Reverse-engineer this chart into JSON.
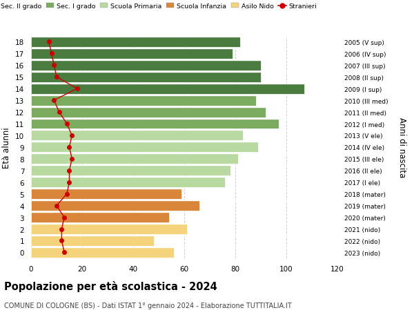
{
  "ages": [
    18,
    17,
    16,
    15,
    14,
    13,
    12,
    11,
    10,
    9,
    8,
    7,
    6,
    5,
    4,
    3,
    2,
    1,
    0
  ],
  "years": [
    "2005 (V sup)",
    "2006 (IV sup)",
    "2007 (III sup)",
    "2008 (II sup)",
    "2009 (I sup)",
    "2010 (III med)",
    "2011 (II med)",
    "2012 (I med)",
    "2013 (V ele)",
    "2014 (IV ele)",
    "2015 (III ele)",
    "2016 (II ele)",
    "2017 (I ele)",
    "2018 (mater)",
    "2019 (mater)",
    "2020 (mater)",
    "2021 (nido)",
    "2022 (nido)",
    "2023 (nido)"
  ],
  "values": [
    82,
    79,
    90,
    90,
    107,
    88,
    92,
    97,
    83,
    89,
    81,
    78,
    76,
    59,
    66,
    54,
    61,
    48,
    56
  ],
  "stranieri": [
    7,
    8,
    9,
    10,
    18,
    9,
    11,
    14,
    16,
    15,
    16,
    15,
    15,
    14,
    10,
    13,
    12,
    12,
    13
  ],
  "bar_colors": [
    "#4a7c3f",
    "#4a7c3f",
    "#4a7c3f",
    "#4a7c3f",
    "#4a7c3f",
    "#7bab5e",
    "#7bab5e",
    "#7bab5e",
    "#b8d9a0",
    "#b8d9a0",
    "#b8d9a0",
    "#b8d9a0",
    "#b8d9a0",
    "#d9863a",
    "#d9863a",
    "#d9863a",
    "#f5d37a",
    "#f5d37a",
    "#f5d37a"
  ],
  "legend_labels": [
    "Sec. II grado",
    "Sec. I grado",
    "Scuola Primaria",
    "Scuola Infanzia",
    "Asilo Nido",
    "Stranieri"
  ],
  "legend_colors": [
    "#4a7c3f",
    "#7bab5e",
    "#b8d9a0",
    "#d9863a",
    "#f5d37a",
    "#cc0000"
  ],
  "title": "Popolazione per età scolastica - 2024",
  "subtitle": "COMUNE DI COLOGNE (BS) - Dati ISTAT 1° gennaio 2024 - Elaborazione TUTTITALIA.IT",
  "ylabel_left": "Età alunni",
  "ylabel_right": "Anni di nascita",
  "xlim": [
    0,
    120
  ],
  "stranieri_color": "#cc0000",
  "background_color": "#ffffff",
  "bar_edge_color": "#ffffff"
}
